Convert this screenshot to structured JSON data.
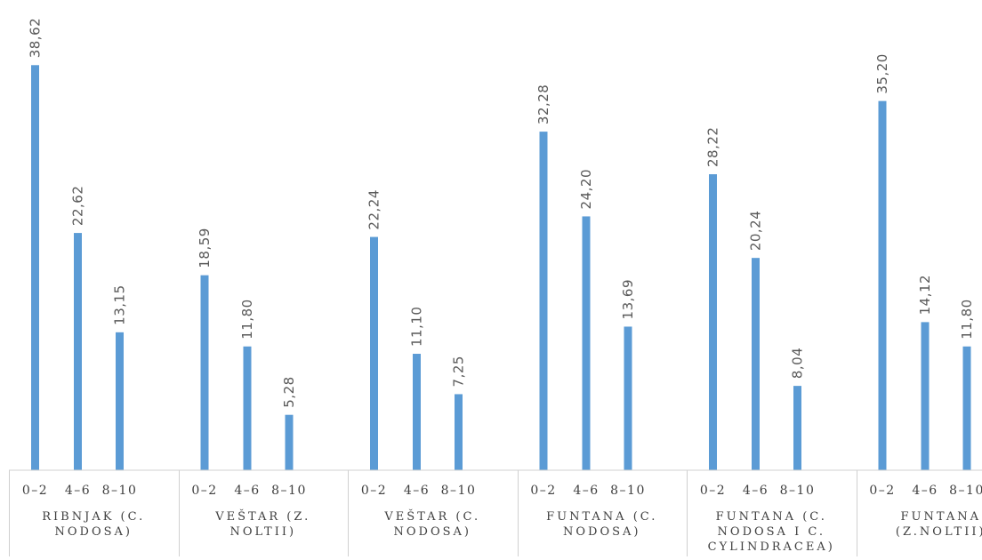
{
  "chart_data": {
    "type": "bar",
    "title": "",
    "xlabel": "",
    "ylabel": "",
    "ylim": [
      0,
      40
    ],
    "grid": false,
    "legend": "none",
    "bar_color": "#5b9bd5",
    "sub_categories": [
      "0–2",
      "4–6",
      "8–10"
    ],
    "groups": [
      {
        "label_lines": [
          "RIBNJAK (C.",
          "NODOSA)"
        ],
        "values": [
          38.62,
          22.62,
          13.15
        ],
        "value_labels": [
          "38,62",
          "22,62",
          "13,15"
        ]
      },
      {
        "label_lines": [
          "VEŠTAR (Z.",
          "NOLTII)"
        ],
        "values": [
          18.59,
          11.8,
          5.28
        ],
        "value_labels": [
          "18,59",
          "11,80",
          "5,28"
        ]
      },
      {
        "label_lines": [
          "VEŠTAR (C.",
          "NODOSA)"
        ],
        "values": [
          22.24,
          11.1,
          7.25
        ],
        "value_labels": [
          "22,24",
          "11,10",
          "7,25"
        ]
      },
      {
        "label_lines": [
          "FUNTANA (C.",
          "NODOSA)"
        ],
        "values": [
          32.28,
          24.2,
          13.69
        ],
        "value_labels": [
          "32,28",
          "24,20",
          "13,69"
        ]
      },
      {
        "label_lines": [
          "FUNTANA (C.",
          "NODOSA I C.",
          "CYLINDRACEA)"
        ],
        "values": [
          28.22,
          20.24,
          8.04
        ],
        "value_labels": [
          "28,22",
          "20,24",
          "8,04"
        ]
      },
      {
        "label_lines": [
          "FUNTANA",
          "(Z.NOLTII)"
        ],
        "values": [
          35.2,
          14.12,
          11.8
        ],
        "value_labels": [
          "35,20",
          "14,12",
          "11,80"
        ]
      }
    ]
  }
}
